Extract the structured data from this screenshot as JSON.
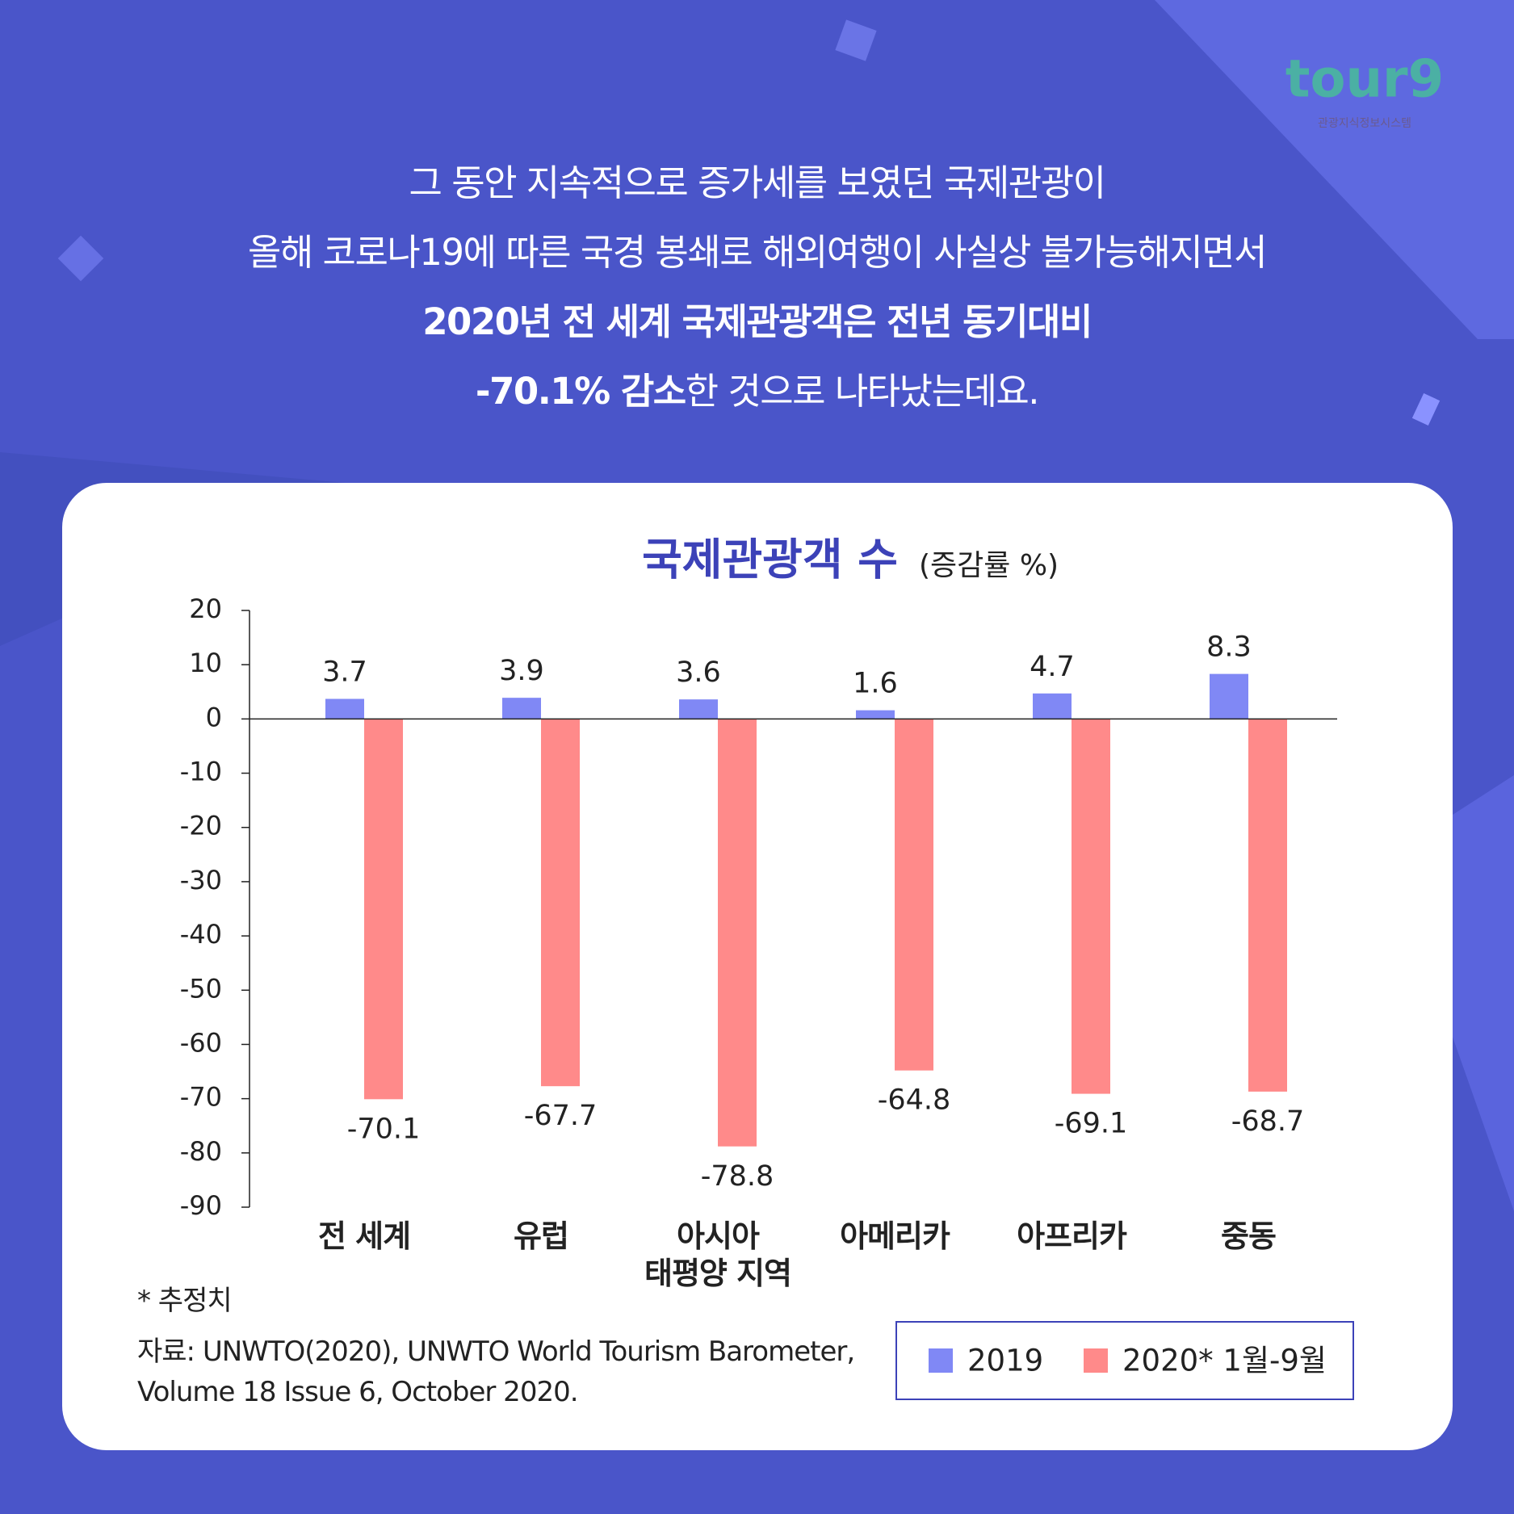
{
  "logo": {
    "text": "tour9",
    "subtext": "관광지식정보시스템"
  },
  "header": {
    "lines": [
      [
        {
          "text": "그 동안 지속적으로 증가세를 보였던 국제관광이",
          "bold": false
        }
      ],
      [
        {
          "text": "올해 코로나19에 따른 국경 봉쇄로 해외여행이 사실상 불가능해지면서",
          "bold": false
        }
      ],
      [
        {
          "text": "2020년 전 세계 국제관광객은 전년 동기대비",
          "bold": true
        }
      ],
      [
        {
          "text": "-70.1% 감소",
          "bold": true
        },
        {
          "text": "한 것으로 나타났는데요.",
          "bold": false
        }
      ]
    ]
  },
  "chart_data": {
    "type": "bar",
    "title": "국제관광객 수",
    "subtitle": "(증감률 %)",
    "categories": [
      "전 세계",
      "유럽",
      "아시아\n태평양 지역",
      "아메리카",
      "아프리카",
      "중동"
    ],
    "series": [
      {
        "name": "2019",
        "color": "#8088f5",
        "values": [
          3.7,
          3.9,
          3.6,
          1.6,
          4.7,
          8.3
        ]
      },
      {
        "name": "2020* 1월-9월",
        "color": "#ff8a8a",
        "values": [
          -70.1,
          -67.7,
          -78.8,
          -64.8,
          -69.1,
          -68.7
        ]
      }
    ],
    "ylim": [
      -90,
      20
    ],
    "yticks": [
      -90,
      -80,
      -70,
      -60,
      -50,
      -40,
      -30,
      -20,
      -10,
      0,
      10,
      20
    ],
    "footnote": "* 추정치",
    "source": "자료: UNWTO(2020), UNWTO World Tourism Barometer,\nVolume 18 Issue 6, October 2020."
  }
}
